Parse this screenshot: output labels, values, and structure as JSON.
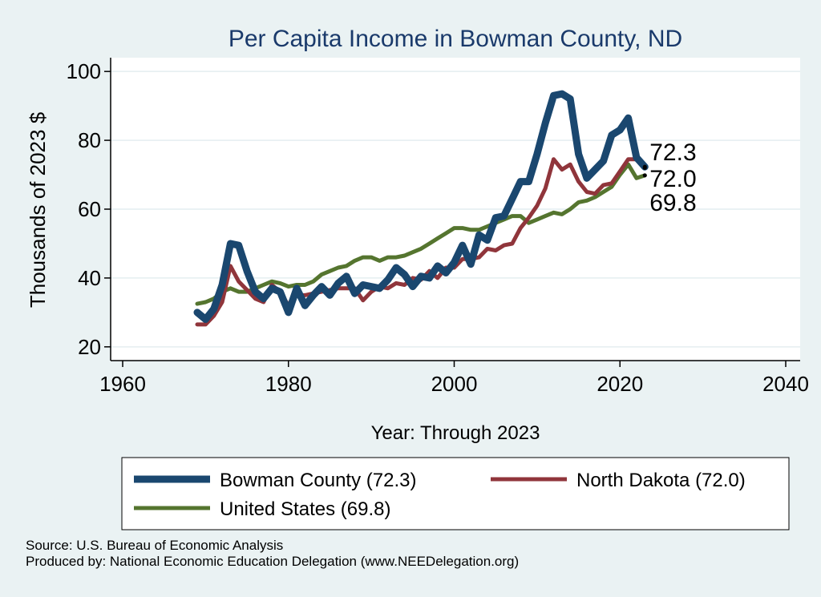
{
  "chart_data": {
    "type": "line",
    "title": "Per Capita Income in Bowman County, ND",
    "xlabel": "Year: Through 2023",
    "ylabel": "Thousands of 2023 $",
    "xlim": [
      1960,
      2040
    ],
    "ylim": [
      20,
      100
    ],
    "x_ticks": [
      1960,
      1980,
      2000,
      2020,
      2040
    ],
    "y_ticks": [
      20,
      40,
      60,
      80,
      100
    ],
    "grid": true,
    "legend_position": "bottom",
    "x": [
      1969,
      1970,
      1971,
      1972,
      1973,
      1974,
      1975,
      1976,
      1977,
      1978,
      1979,
      1980,
      1981,
      1982,
      1983,
      1984,
      1985,
      1986,
      1987,
      1988,
      1989,
      1990,
      1991,
      1992,
      1993,
      1994,
      1995,
      1996,
      1997,
      1998,
      1999,
      2000,
      2001,
      2002,
      2003,
      2004,
      2005,
      2006,
      2007,
      2008,
      2009,
      2010,
      2011,
      2012,
      2013,
      2014,
      2015,
      2016,
      2017,
      2018,
      2019,
      2020,
      2021,
      2022,
      2023
    ],
    "series": [
      {
        "name": "Bowman County (72.3)",
        "color": "#1a476f",
        "end_label": "72.3",
        "values": [
          30,
          28,
          31,
          38,
          50,
          49.5,
          42,
          36,
          34,
          37,
          36,
          30,
          37,
          32,
          35,
          37.5,
          35,
          38.5,
          40.5,
          35.5,
          38,
          37.5,
          37,
          39.5,
          43,
          41,
          37.5,
          40.5,
          40,
          43.5,
          41.5,
          44.5,
          49.5,
          44,
          52.5,
          51,
          57.5,
          58,
          63,
          68,
          68,
          76,
          85,
          93,
          93.5,
          92,
          76,
          69,
          71.5,
          74,
          81.5,
          83,
          86.5,
          75,
          72.3
        ]
      },
      {
        "name": "North Dakota (72.0)",
        "color": "#90353b",
        "end_label": "72.0",
        "values": [
          26.5,
          26.5,
          29,
          33,
          43.5,
          39,
          36.5,
          34,
          33,
          38,
          36,
          32,
          35,
          35,
          35.5,
          36,
          36.5,
          37,
          37,
          37,
          33.5,
          36,
          37.5,
          37,
          38.5,
          38,
          40,
          39.5,
          42,
          40,
          43,
          43,
          45.5,
          45.5,
          46,
          48.5,
          48,
          49.5,
          50,
          54.5,
          57.5,
          61,
          66,
          74.5,
          71.5,
          73,
          68,
          65,
          64.5,
          67,
          67.5,
          71,
          74.5,
          74.5,
          72.0
        ]
      },
      {
        "name": "United States (69.8)",
        "color": "#55752f",
        "end_label": "69.8",
        "values": [
          32.5,
          33,
          34,
          36,
          37,
          36,
          36,
          37,
          38,
          39,
          38.5,
          37.5,
          38,
          38,
          39,
          41,
          42,
          43,
          43.5,
          45,
          46,
          46,
          45,
          46,
          46,
          46.5,
          47.5,
          48.5,
          50,
          51.5,
          53,
          54.5,
          54.5,
          54,
          54,
          55,
          56,
          57,
          58,
          58,
          56,
          57,
          58,
          59,
          58.5,
          60,
          62,
          62.5,
          63.5,
          65,
          66.5,
          70,
          73,
          69,
          69.8
        ]
      }
    ]
  },
  "footnotes": {
    "source": "Source: U.S. Bureau of Economic Analysis",
    "produced_by": "Produced by: National Economic Education Delegation (www.NEEDelegation.org)"
  }
}
